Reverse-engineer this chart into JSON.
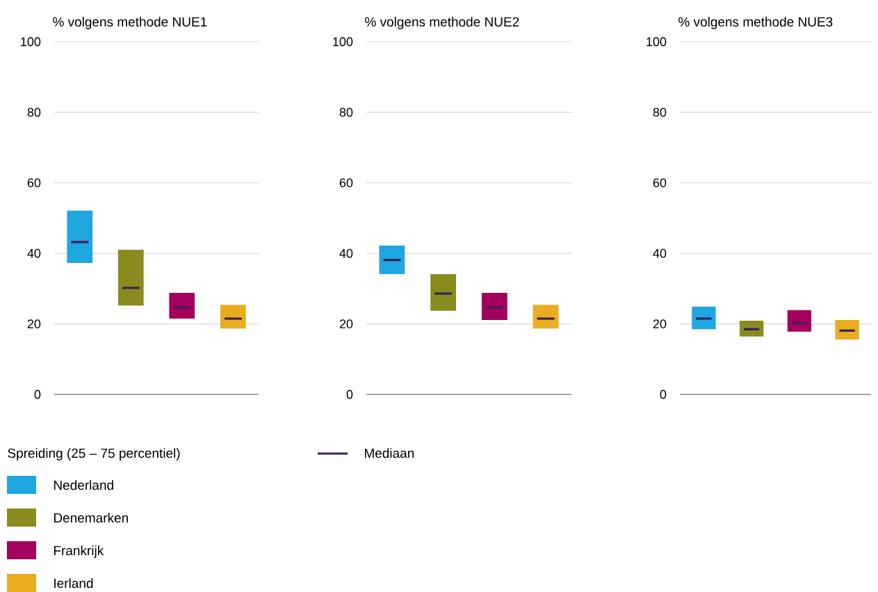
{
  "chart_data": [
    {
      "type": "box",
      "title": "% volgens methode NUE1",
      "categories": [
        null,
        null,
        null,
        null
      ],
      "ylim": [
        0,
        100
      ],
      "yticks": [
        0,
        20,
        40,
        60,
        80,
        100
      ],
      "grid": "y",
      "legend": "bottom left",
      "legend_title": "Spreiding (25 – 75 percentiel)",
      "annotations": [
        "Mediaan"
      ],
      "series": [
        {
          "name": "Nederland",
          "color": "#1ea7e1",
          "boxes": [
            {
              "low": 37.3,
              "q1": 37.3,
              "median": 43.2,
              "q3": 52.1,
              "high": 52.1
            },
            null,
            null,
            null
          ]
        },
        {
          "name": "Denemarken",
          "color": "#8a8b1f",
          "boxes": [
            null,
            {
              "low": 25.2,
              "q1": 25.2,
              "median": 30.2,
              "q3": 41,
              "high": 41
            },
            null,
            null
          ]
        },
        {
          "name": "Frankrijk",
          "color": "#a6005e",
          "boxes": [
            null,
            null,
            {
              "low": 21.5,
              "q1": 21.5,
              "median": 24.7,
              "q3": 28.8,
              "high": 28.8
            },
            null
          ]
        },
        {
          "name": "Ierland",
          "color": "#e9ad1f",
          "boxes": [
            null,
            null,
            null,
            {
              "low": 18.7,
              "q1": 18.7,
              "median": 21.5,
              "q3": 25.4,
              "high": 25.4
            }
          ]
        }
      ]
    },
    {
      "type": "box",
      "title": "% volgens methode NUE2",
      "categories": [
        null,
        null,
        null,
        null
      ],
      "ylim": [
        0,
        100
      ],
      "yticks": [
        0,
        20,
        40,
        60,
        80,
        100
      ],
      "grid": "y",
      "series": [
        {
          "color": "#1ea7e1",
          "boxes": [
            {
              "low": 34.1,
              "q1": 34.1,
              "median": 38.1,
              "q3": 42.2,
              "high": 42.2
            },
            null,
            null,
            null
          ]
        },
        {
          "color": "#8a8b1f",
          "boxes": [
            null,
            {
              "low": 23.7,
              "q1": 23.7,
              "median": 28.6,
              "q3": 34.1,
              "high": 34.1
            },
            null,
            null
          ]
        },
        {
          "color": "#a6005e",
          "boxes": [
            null,
            null,
            {
              "low": 21.1,
              "q1": 21.1,
              "median": 24.7,
              "q3": 28.8,
              "high": 28.8
            },
            null
          ]
        },
        {
          "color": "#e9ad1f",
          "boxes": [
            null,
            null,
            null,
            {
              "low": 18.7,
              "q1": 18.7,
              "median": 21.5,
              "q3": 25.4,
              "high": 25.4
            }
          ]
        }
      ]
    },
    {
      "type": "box",
      "title": "% volgens methode NUE3",
      "categories": [
        null,
        null,
        null,
        null
      ],
      "ylim": [
        0,
        100
      ],
      "yticks": [
        0,
        20,
        40,
        60,
        80,
        100
      ],
      "grid": "y",
      "series": [
        {
          "color": "#1ea7e1",
          "boxes": [
            {
              "low": 18.5,
              "q1": 18.5,
              "median": 21.5,
              "q3": 24.9,
              "high": 24.9
            },
            null,
            null,
            null
          ]
        },
        {
          "color": "#8a8b1f",
          "boxes": [
            null,
            {
              "low": 16.4,
              "q1": 16.4,
              "median": 18.5,
              "q3": 20.9,
              "high": 20.9
            },
            null,
            null
          ]
        },
        {
          "color": "#a6005e",
          "boxes": [
            null,
            null,
            {
              "low": 17.8,
              "q1": 17.8,
              "median": 20.3,
              "q3": 23.9,
              "high": 23.9
            },
            null
          ]
        },
        {
          "color": "#e9ad1f",
          "boxes": [
            null,
            null,
            null,
            {
              "low": 15.6,
              "q1": 15.6,
              "median": 18.1,
              "q3": 21.1,
              "high": 21.1
            }
          ]
        }
      ]
    }
  ]
}
